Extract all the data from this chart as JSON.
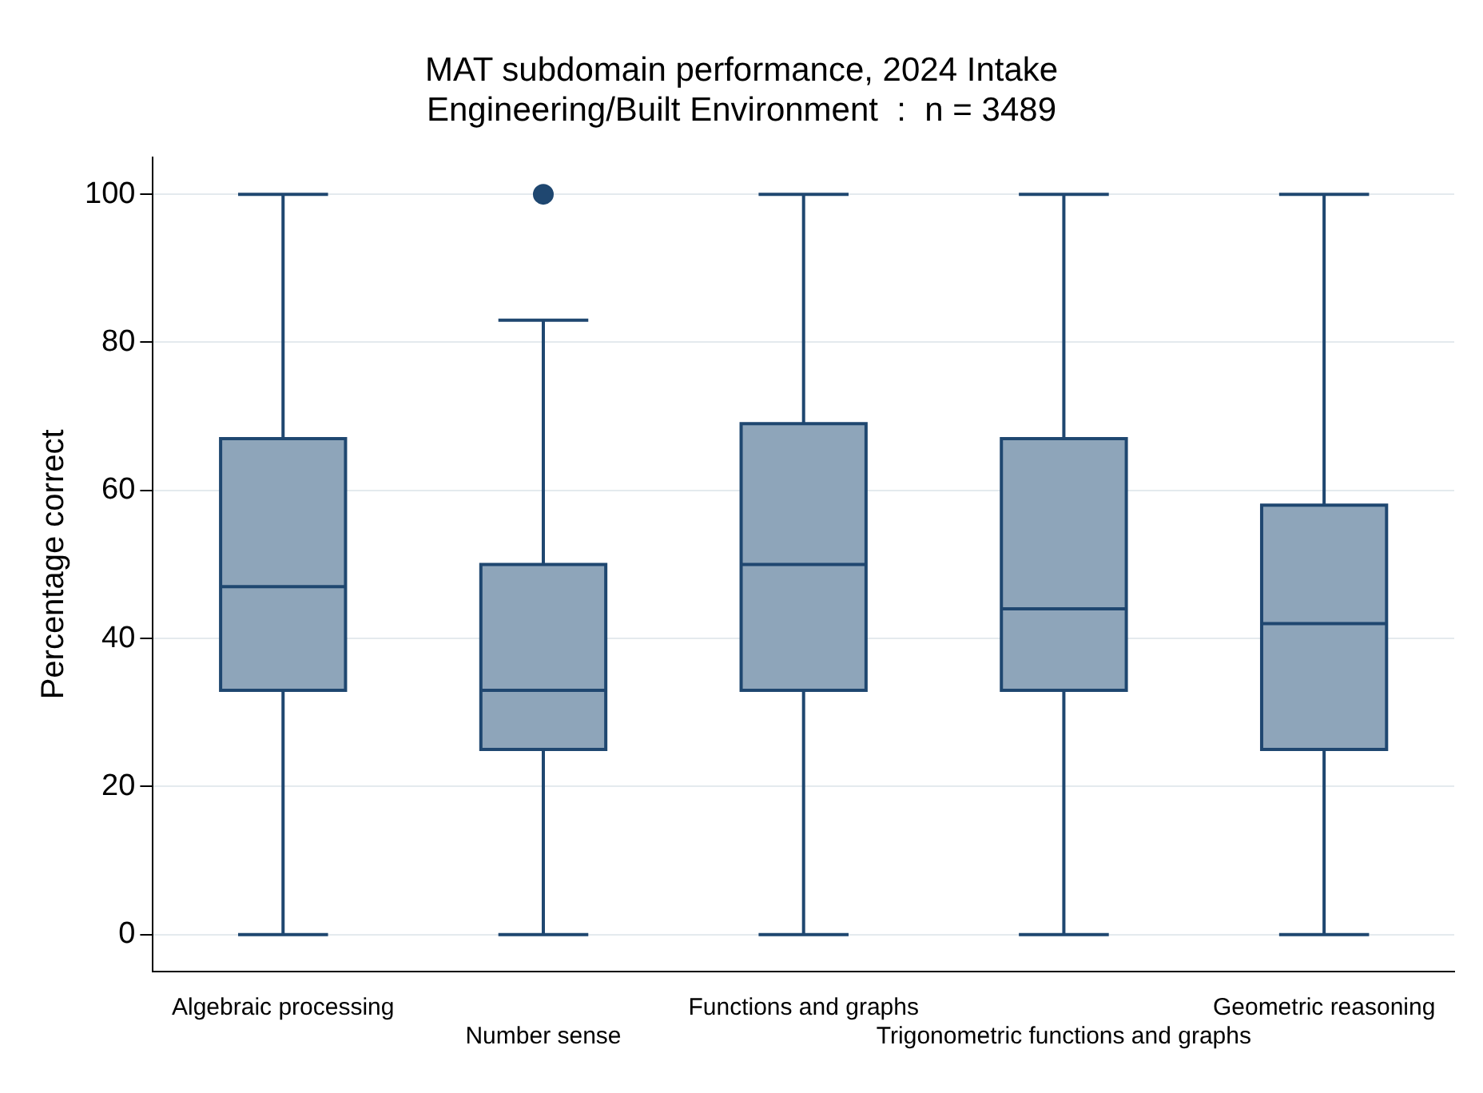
{
  "chart_data": {
    "type": "box",
    "title": "MAT subdomain performance, 2024 Intake",
    "subtitle": "Engineering/Built Environment  :  n = 3489",
    "ylabel": "Percentage correct",
    "categories": [
      "Algebraic processing",
      "Number sense",
      "Functions and graphs",
      "Trigonometric functions and graphs",
      "Geometric reasoning"
    ],
    "series": [
      {
        "color": "#8ea5ba",
        "boxes": [
          {
            "low": 0,
            "q1": 33,
            "median": 47,
            "q3": 67,
            "high": 100
          },
          {
            "low": 0,
            "q1": 25,
            "median": 33,
            "q3": 50,
            "high": 83,
            "outliers": [
              100
            ]
          },
          {
            "low": 0,
            "q1": 33,
            "median": 50,
            "q3": 69,
            "high": 100
          },
          {
            "low": 0,
            "q1": 33,
            "median": 44,
            "q3": 67,
            "high": 100
          },
          {
            "low": 0,
            "q1": 25,
            "median": 42,
            "q3": 58,
            "high": 100
          }
        ]
      }
    ],
    "ylim": [
      -5,
      105
    ],
    "yticks": [
      0,
      20,
      40,
      60,
      80,
      100
    ],
    "grid": "y",
    "legend": false,
    "marker": "circle"
  }
}
